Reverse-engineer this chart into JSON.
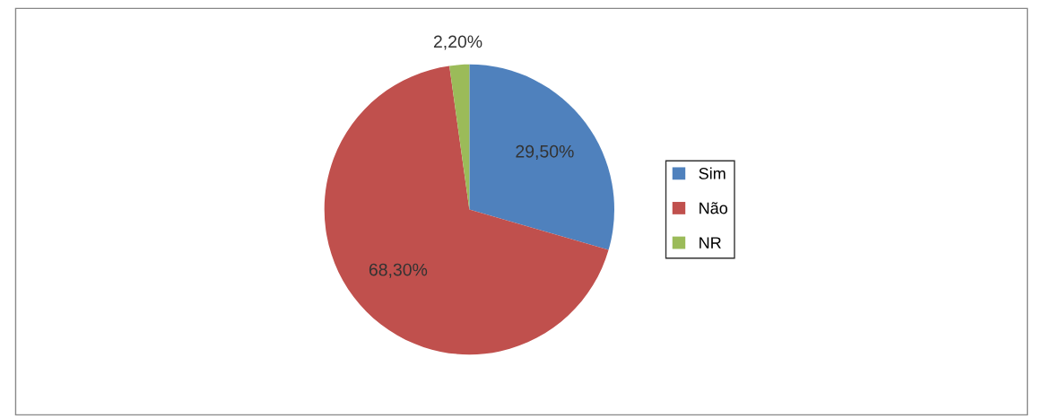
{
  "chart_data": {
    "type": "pie",
    "categories": [
      "Sim",
      "Não",
      "NR"
    ],
    "values": [
      29.5,
      68.3,
      2.2
    ],
    "colors": [
      "#4f81bd",
      "#c0504d",
      "#9bbb59"
    ],
    "value_labels": [
      "29,50%",
      "68,30%",
      "2,20%"
    ],
    "legend": "right"
  }
}
